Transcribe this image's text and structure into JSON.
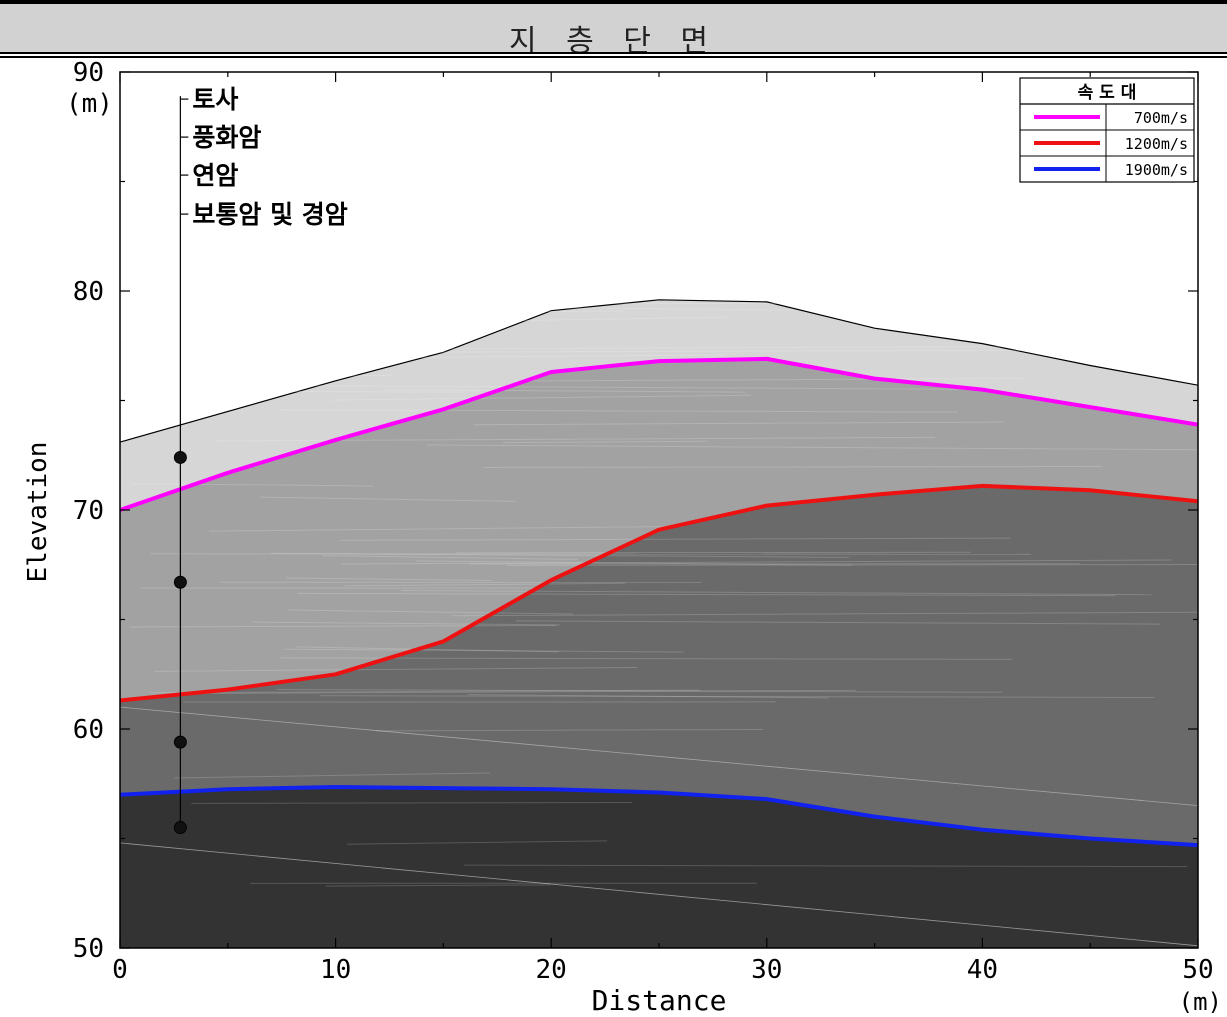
{
  "header": {
    "title": "지 층 단 면"
  },
  "colors": {
    "soil": "#d6d6d6",
    "weathered": "#a2a2a2",
    "soft_rock": "#6a6a6a",
    "hard_rock": "#333333",
    "line_700": "#ff00ff",
    "line_1200": "#ee1111",
    "line_1900": "#1122ee"
  },
  "strata_labels": [
    "토사",
    "풍화암",
    "연암",
    "보통암 및 경암"
  ],
  "chart_data": {
    "type": "line",
    "title": "지 층 단 면",
    "xlabel": "Distance",
    "ylabel": "Elevation",
    "x_unit": "(m)",
    "y_unit": "(m)",
    "xlim": [
      0,
      50
    ],
    "ylim": [
      50,
      90
    ],
    "x_ticks": [
      "0",
      "10",
      "20",
      "30",
      "40",
      "50"
    ],
    "y_ticks": [
      "50",
      "60",
      "70",
      "80",
      "90"
    ],
    "grid": false,
    "legend": {
      "title": "속 도 대",
      "position": "top-right",
      "entries": [
        "700m/s",
        "1200m/s",
        "1900m/s"
      ]
    },
    "ground_surface": {
      "x": [
        0,
        10,
        15,
        20,
        25,
        30,
        35,
        40,
        45,
        50
      ],
      "y": [
        73.1,
        75.9,
        77.2,
        79.1,
        79.6,
        79.5,
        78.3,
        77.6,
        76.6,
        75.7
      ]
    },
    "series": [
      {
        "name": "700m/s",
        "x": [
          0,
          5,
          10,
          15,
          20,
          25,
          30,
          35,
          40,
          45,
          50
        ],
        "y": [
          70.0,
          71.7,
          73.2,
          74.6,
          76.3,
          76.8,
          76.9,
          76.0,
          75.5,
          74.7,
          73.9
        ]
      },
      {
        "name": "1200m/s",
        "x": [
          0,
          5,
          10,
          15,
          20,
          25,
          30,
          35,
          40,
          45,
          50
        ],
        "y": [
          61.3,
          61.8,
          62.5,
          64.0,
          66.8,
          69.1,
          70.2,
          70.7,
          71.1,
          70.9,
          70.4
        ]
      },
      {
        "name": "1900m/s",
        "x": [
          0,
          5,
          10,
          15,
          20,
          25,
          30,
          35,
          40,
          45,
          50
        ],
        "y": [
          57.0,
          57.25,
          57.35,
          57.3,
          57.25,
          57.1,
          56.8,
          56.0,
          55.4,
          55.0,
          54.7
        ]
      }
    ],
    "borehole": {
      "x": 2.8,
      "top": 88.9,
      "markers_y": [
        72.4,
        66.7,
        59.4,
        55.5
      ]
    }
  }
}
